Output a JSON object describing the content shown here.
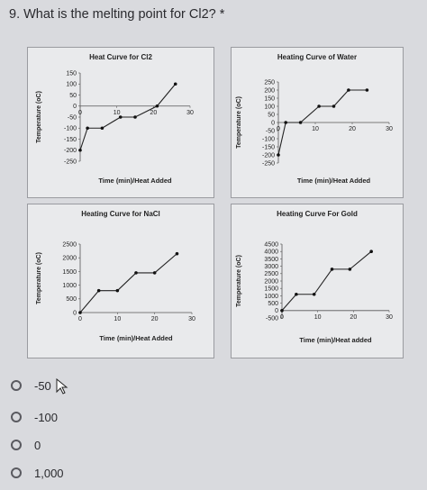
{
  "question": {
    "text": "9. What is the melting point for Cl2? *"
  },
  "charts": [
    {
      "title": "Heat Curve for Cl2",
      "ylabel": "Temperature (oC)",
      "xlabel": "Time (min)/Heat Added",
      "yticks": [
        "150",
        "100",
        "50",
        "0",
        "-50",
        "-100",
        "-150",
        "-200",
        "-250"
      ],
      "xticks": [
        "0",
        "10",
        "20",
        "30"
      ],
      "chart_data": {
        "type": "line",
        "x": [
          0,
          2,
          6,
          11,
          15,
          21,
          26
        ],
        "y": [
          -200,
          -100,
          -100,
          -50,
          -50,
          0,
          100
        ],
        "xlim": [
          0,
          30
        ],
        "ylim": [
          -250,
          150
        ]
      }
    },
    {
      "title": "Heating Curve of Water",
      "ylabel": "Temperature (oC)",
      "xlabel": "Time (min)/Heat Added",
      "yticks": [
        "250",
        "200",
        "150",
        "100",
        "50",
        "0",
        "-50",
        "-100",
        "-150",
        "-200",
        "-250"
      ],
      "xticks": [
        "0",
        "10",
        "20",
        "30"
      ],
      "chart_data": {
        "type": "line",
        "x": [
          0,
          2,
          6,
          11,
          15,
          19,
          24
        ],
        "y": [
          -200,
          0,
          0,
          100,
          100,
          200,
          200
        ],
        "xlim": [
          0,
          30
        ],
        "ylim": [
          -250,
          250
        ]
      }
    },
    {
      "title": "Heating Curve for NaCl",
      "ylabel": "Temperature (oC)",
      "xlabel": "Time (min)/Heat Added",
      "yticks": [
        "2500",
        "2000",
        "1500",
        "1000",
        "500",
        "0"
      ],
      "xticks": [
        "0",
        "10",
        "20",
        "30"
      ],
      "chart_data": {
        "type": "line",
        "x": [
          0,
          5,
          10,
          15,
          20,
          26
        ],
        "y": [
          0,
          800,
          800,
          1450,
          1450,
          2150
        ],
        "xlim": [
          0,
          30
        ],
        "ylim": [
          0,
          2500
        ]
      }
    },
    {
      "title": "Heating Curve For Gold",
      "ylabel": "Temperature (oC)",
      "xlabel": "Time (min)/Heat added",
      "yticks": [
        "4500",
        "4000",
        "3500",
        "3000",
        "2500",
        "2000",
        "1500",
        "1000",
        "500",
        "0",
        "-500"
      ],
      "xticks": [
        "0",
        "10",
        "20",
        "30"
      ],
      "chart_data": {
        "type": "line",
        "x": [
          0,
          4,
          9,
          14,
          19,
          25
        ],
        "y": [
          0,
          1100,
          1100,
          2800,
          2800,
          4000
        ],
        "xlim": [
          0,
          30
        ],
        "ylim": [
          -500,
          4500
        ]
      }
    }
  ],
  "options": [
    {
      "label": "-50"
    },
    {
      "label": "-100"
    },
    {
      "label": "0"
    },
    {
      "label": "1,000"
    }
  ]
}
